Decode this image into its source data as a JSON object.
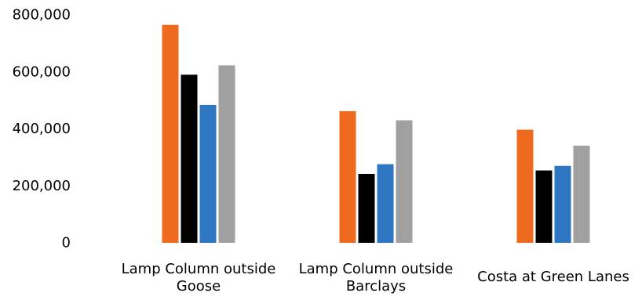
{
  "chart_data": {
    "type": "bar",
    "title": "",
    "xlabel": "",
    "ylabel": "",
    "ylim": [
      0,
      800000
    ],
    "yticks": [
      "0",
      "200,000",
      "400,000",
      "600,000",
      "800,000"
    ],
    "grid": false,
    "legend": "none",
    "categories": [
      [
        "Lamp Column outside",
        "Goose"
      ],
      [
        "Lamp Column outside",
        "Barclays"
      ],
      [
        "Costa at Green Lanes"
      ]
    ],
    "series": [
      {
        "color": "#EE6A1E",
        "values": [
          765000,
          462000,
          397000
        ]
      },
      {
        "color": "#000000",
        "values": [
          590000,
          242000,
          254000
        ]
      },
      {
        "color": "#2E75C2",
        "values": [
          484000,
          276000,
          270000
        ]
      },
      {
        "color": "#A0A0A0",
        "values": [
          623000,
          430000,
          341000
        ]
      }
    ]
  }
}
